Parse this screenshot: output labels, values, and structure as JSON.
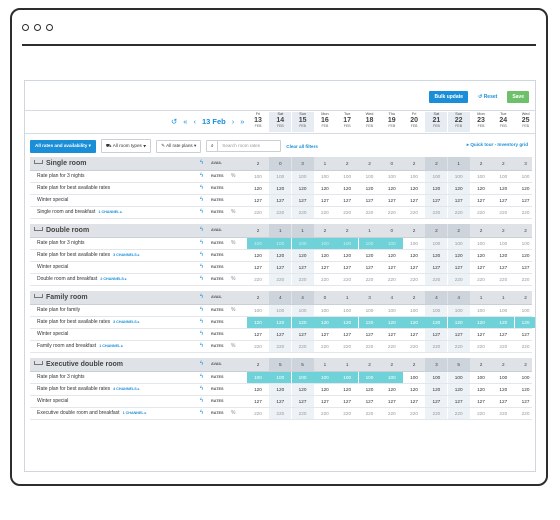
{
  "toolbar": {
    "bulk": "Bulk update",
    "reset": "Reset",
    "save": "Save"
  },
  "nav": {
    "current": "13 Feb",
    "undo": "↺",
    "first": "«",
    "prev": "‹",
    "next": "›",
    "last": "»"
  },
  "dates": [
    {
      "dow": "Fri",
      "day": "13",
      "mon": "FEB"
    },
    {
      "dow": "Sat",
      "day": "14",
      "mon": "FEB"
    },
    {
      "dow": "Sun",
      "day": "15",
      "mon": "FEB"
    },
    {
      "dow": "Mon",
      "day": "16",
      "mon": "FEB"
    },
    {
      "dow": "Tue",
      "day": "17",
      "mon": "FEB"
    },
    {
      "dow": "Wed",
      "day": "18",
      "mon": "FEB"
    },
    {
      "dow": "Thu",
      "day": "19",
      "mon": "FEB"
    },
    {
      "dow": "Fri",
      "day": "20",
      "mon": "FEB"
    },
    {
      "dow": "Sat",
      "day": "21",
      "mon": "FEB"
    },
    {
      "dow": "Sun",
      "day": "22",
      "mon": "FEB"
    },
    {
      "dow": "Mon",
      "day": "23",
      "mon": "FEB"
    },
    {
      "dow": "Tue",
      "day": "24",
      "mon": "FEB"
    },
    {
      "dow": "Wed",
      "day": "25",
      "mon": "FEB"
    }
  ],
  "weekend_cols": [
    1,
    2,
    8,
    9
  ],
  "filters": {
    "rates": "All rates and availability ▾",
    "rooms": "All room types ▾",
    "plans": "All rate plans ▾",
    "search_placeholder": "Search room rates",
    "clear": "Clear all filters",
    "tour": "▸ Quick tour - Inventory grid"
  },
  "labels": {
    "avail": "AVAIL",
    "rates": "RATES"
  },
  "colors": {
    "accent": "#1a8fd8",
    "highlight": "#6fd2d8",
    "save": "#6fc06a"
  },
  "sections": [
    {
      "name": "Single room",
      "avail": [
        "2",
        "0",
        "3",
        "1",
        "2",
        "2",
        "0",
        "2",
        "2",
        "1",
        "2",
        "2",
        "3"
      ],
      "rows": [
        {
          "name": "Rate plan for 3 nights",
          "channel": "",
          "pct": true,
          "gray": true,
          "values": [
            "100",
            "100",
            "100",
            "100",
            "100",
            "100",
            "100",
            "100",
            "100",
            "100",
            "100",
            "100",
            "100"
          ],
          "hl": []
        },
        {
          "name": "Rate plan for best available rates",
          "channel": "",
          "pct": false,
          "gray": false,
          "values": [
            "120",
            "120",
            "120",
            "120",
            "120",
            "120",
            "120",
            "120",
            "120",
            "120",
            "120",
            "120",
            "120"
          ],
          "hl": []
        },
        {
          "name": "Winter special",
          "channel": "",
          "pct": false,
          "gray": false,
          "values": [
            "127",
            "127",
            "127",
            "127",
            "127",
            "127",
            "127",
            "127",
            "127",
            "127",
            "127",
            "127",
            "127"
          ],
          "hl": []
        },
        {
          "name": "Single room and breakfast",
          "channel": "1 CHANNEL ▸",
          "pct": true,
          "gray": true,
          "values": [
            "220",
            "220",
            "220",
            "220",
            "220",
            "220",
            "220",
            "220",
            "220",
            "220",
            "220",
            "220",
            "220"
          ],
          "hl": []
        }
      ]
    },
    {
      "name": "Double room",
      "avail": [
        "2",
        "1",
        "1",
        "2",
        "2",
        "1",
        "0",
        "2",
        "2",
        "2",
        "2",
        "2",
        "2"
      ],
      "rows": [
        {
          "name": "Rate plan for 3 nights",
          "channel": "",
          "pct": true,
          "gray": true,
          "values": [
            "100",
            "100",
            "100",
            "100",
            "100",
            "100",
            "100",
            "100",
            "100",
            "100",
            "100",
            "100",
            "100"
          ],
          "hl": [
            0,
            1,
            2,
            3,
            4,
            5,
            6
          ]
        },
        {
          "name": "Rate plan for best available rates",
          "channel": "3 CHANNELS ▸",
          "pct": false,
          "gray": false,
          "values": [
            "120",
            "120",
            "120",
            "120",
            "120",
            "120",
            "120",
            "120",
            "120",
            "120",
            "120",
            "120",
            "120"
          ],
          "hl": []
        },
        {
          "name": "Winter special",
          "channel": "",
          "pct": false,
          "gray": false,
          "values": [
            "127",
            "127",
            "127",
            "127",
            "127",
            "127",
            "127",
            "127",
            "127",
            "127",
            "127",
            "127",
            "127"
          ],
          "hl": []
        },
        {
          "name": "Double room and breakfast",
          "channel": "2 CHANNELS ▸",
          "pct": true,
          "gray": true,
          "values": [
            "220",
            "220",
            "220",
            "220",
            "220",
            "220",
            "220",
            "220",
            "220",
            "220",
            "220",
            "220",
            "220"
          ],
          "hl": []
        }
      ]
    },
    {
      "name": "Family room",
      "avail": [
        "2",
        "4",
        "4",
        "0",
        "1",
        "3",
        "4",
        "2",
        "4",
        "4",
        "1",
        "1",
        "2"
      ],
      "rows": [
        {
          "name": "Rate plan for family",
          "channel": "",
          "pct": true,
          "gray": true,
          "values": [
            "100",
            "100",
            "100",
            "100",
            "100",
            "100",
            "100",
            "100",
            "100",
            "100",
            "100",
            "100",
            "100"
          ],
          "hl": []
        },
        {
          "name": "Rate plan for best available rates",
          "channel": "3 CHANNELS ▸",
          "pct": false,
          "gray": false,
          "values": [
            "120",
            "120",
            "120",
            "120",
            "120",
            "120",
            "120",
            "120",
            "120",
            "120",
            "120",
            "120",
            "120"
          ],
          "hl": [
            0,
            1,
            2,
            3,
            4,
            5,
            6,
            7,
            8,
            9,
            10,
            11,
            12
          ]
        },
        {
          "name": "Winter special",
          "channel": "",
          "pct": false,
          "gray": false,
          "values": [
            "127",
            "127",
            "127",
            "127",
            "127",
            "127",
            "127",
            "127",
            "127",
            "127",
            "127",
            "127",
            "127"
          ],
          "hl": []
        },
        {
          "name": "Family room and breakfast",
          "channel": "1 CHANNEL ▸",
          "pct": true,
          "gray": true,
          "values": [
            "220",
            "220",
            "220",
            "220",
            "220",
            "220",
            "220",
            "220",
            "220",
            "220",
            "220",
            "220",
            "220"
          ],
          "hl": []
        }
      ]
    },
    {
      "name": "Executive double room",
      "avail": [
        "2",
        "5",
        "5",
        "1",
        "1",
        "2",
        "2",
        "2",
        "3",
        "5",
        "2",
        "2",
        "2"
      ],
      "rows": [
        {
          "name": "Rate plan for 3 nights",
          "channel": "",
          "pct": false,
          "gray": false,
          "values": [
            "100",
            "100",
            "100",
            "100",
            "100",
            "100",
            "100",
            "100",
            "100",
            "100",
            "100",
            "100",
            "100"
          ],
          "hl": [
            0,
            1,
            2,
            3,
            4,
            5,
            6
          ]
        },
        {
          "name": "Rate plan for best available rates",
          "channel": "4 CHANNELS ▸",
          "pct": false,
          "gray": false,
          "values": [
            "120",
            "120",
            "120",
            "120",
            "120",
            "120",
            "120",
            "120",
            "120",
            "120",
            "120",
            "120",
            "120"
          ],
          "hl": []
        },
        {
          "name": "Winter special",
          "channel": "",
          "pct": false,
          "gray": false,
          "values": [
            "127",
            "127",
            "127",
            "127",
            "127",
            "127",
            "127",
            "127",
            "127",
            "127",
            "127",
            "127",
            "127"
          ],
          "hl": []
        },
        {
          "name": "Executive double room and breakfast",
          "channel": "1 CHANNEL ▸",
          "pct": true,
          "gray": true,
          "values": [
            "220",
            "220",
            "220",
            "220",
            "220",
            "220",
            "220",
            "220",
            "220",
            "220",
            "220",
            "220",
            "220"
          ],
          "hl": []
        }
      ]
    }
  ]
}
